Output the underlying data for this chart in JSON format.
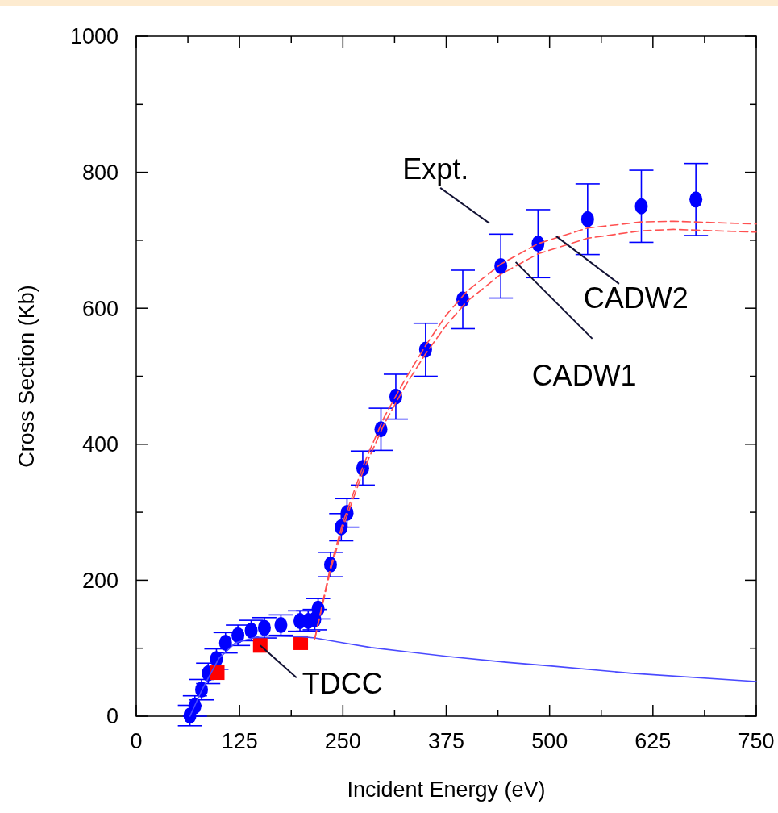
{
  "chart_data": {
    "type": "scatter",
    "xlabel": "Incident Energy (eV)",
    "ylabel": "Cross Section (Kb)",
    "xlim": [
      0,
      750
    ],
    "ylim": [
      0,
      1000
    ],
    "xticks": [
      0,
      {
        "value": 62.5,
        "label": null
      },
      125,
      {
        "value": 187.5,
        "label": null
      },
      250,
      {
        "value": 312.5,
        "label": null
      },
      375,
      {
        "value": 437.5,
        "label": null
      },
      500,
      {
        "value": 562.5,
        "label": null
      },
      625,
      {
        "value": 687.5,
        "label": null
      },
      750
    ],
    "yticks": [
      0,
      {
        "value": 100,
        "label": null
      },
      200,
      {
        "value": 300,
        "label": null
      },
      400,
      {
        "value": 500,
        "label": null
      },
      600,
      {
        "value": 700,
        "label": null
      },
      800,
      {
        "value": 900,
        "label": null
      },
      1000
    ],
    "grid": false,
    "series": [
      {
        "type": "line",
        "color": "#4a4aff",
        "line_style": "solid",
        "marker": "none",
        "x": [
          65,
          80,
          100,
          120,
          150,
          200,
          216,
          250,
          284,
          375,
          450,
          500,
          600,
          750
        ],
        "values": [
          0,
          40,
          85,
          108,
          118,
          117,
          115,
          108,
          101,
          88,
          79,
          74,
          63,
          51
        ]
      },
      {
        "type": "line",
        "color": "#ff5050",
        "line_style": "dashed",
        "marker": "none",
        "x": [
          216,
          235,
          250,
          275,
          300,
          325,
          350,
          375,
          400,
          441,
          486,
          546,
          611,
          650,
          750
        ],
        "values": [
          114,
          215,
          278,
          362,
          430,
          485,
          533,
          575,
          610,
          650,
          680,
          703,
          714,
          716,
          712
        ]
      },
      {
        "type": "line",
        "color": "#ff5050",
        "line_style": "dashed",
        "marker": "none",
        "x": [
          216,
          235,
          250,
          275,
          300,
          325,
          350,
          375,
          400,
          441,
          486,
          546,
          611,
          650,
          750
        ],
        "values": [
          114,
          220,
          285,
          370,
          440,
          495,
          545,
          590,
          625,
          665,
          695,
          718,
          727,
          728,
          724
        ]
      },
      {
        "color": "#0000ff",
        "marker": "circle",
        "x": [
          65,
          71,
          79,
          87,
          97,
          108,
          123,
          139,
          155,
          175,
          198,
          208,
          216,
          220,
          235,
          248,
          255,
          274,
          296,
          314,
          350,
          395,
          441,
          486,
          546,
          611,
          677
        ],
        "values": [
          1,
          15,
          39,
          63,
          84,
          108,
          119,
          126,
          130,
          134,
          140,
          140,
          142,
          158,
          223,
          278,
          299,
          365,
          422,
          470,
          539,
          613,
          662,
          695,
          731,
          750,
          760
        ],
        "errors": [
          15,
          15,
          15,
          15,
          15,
          15,
          15,
          15,
          15,
          15,
          15,
          15,
          15,
          15,
          18,
          20,
          21,
          25,
          31,
          33,
          39,
          43,
          47,
          50,
          52,
          53,
          53
        ]
      },
      {
        "color": "#ff0000",
        "marker": "square",
        "x": [
          98,
          150,
          199
        ],
        "values": [
          64,
          104,
          108
        ]
      }
    ],
    "annotations": [
      {
        "text": "Expt.",
        "x": 441,
        "y": 662
      },
      {
        "text": "CADW2",
        "x": 508,
        "y": 706
      },
      {
        "text": "CADW1",
        "x": 459,
        "y": 668
      },
      {
        "text": "TDCC",
        "x": 150,
        "y": 104
      }
    ]
  }
}
